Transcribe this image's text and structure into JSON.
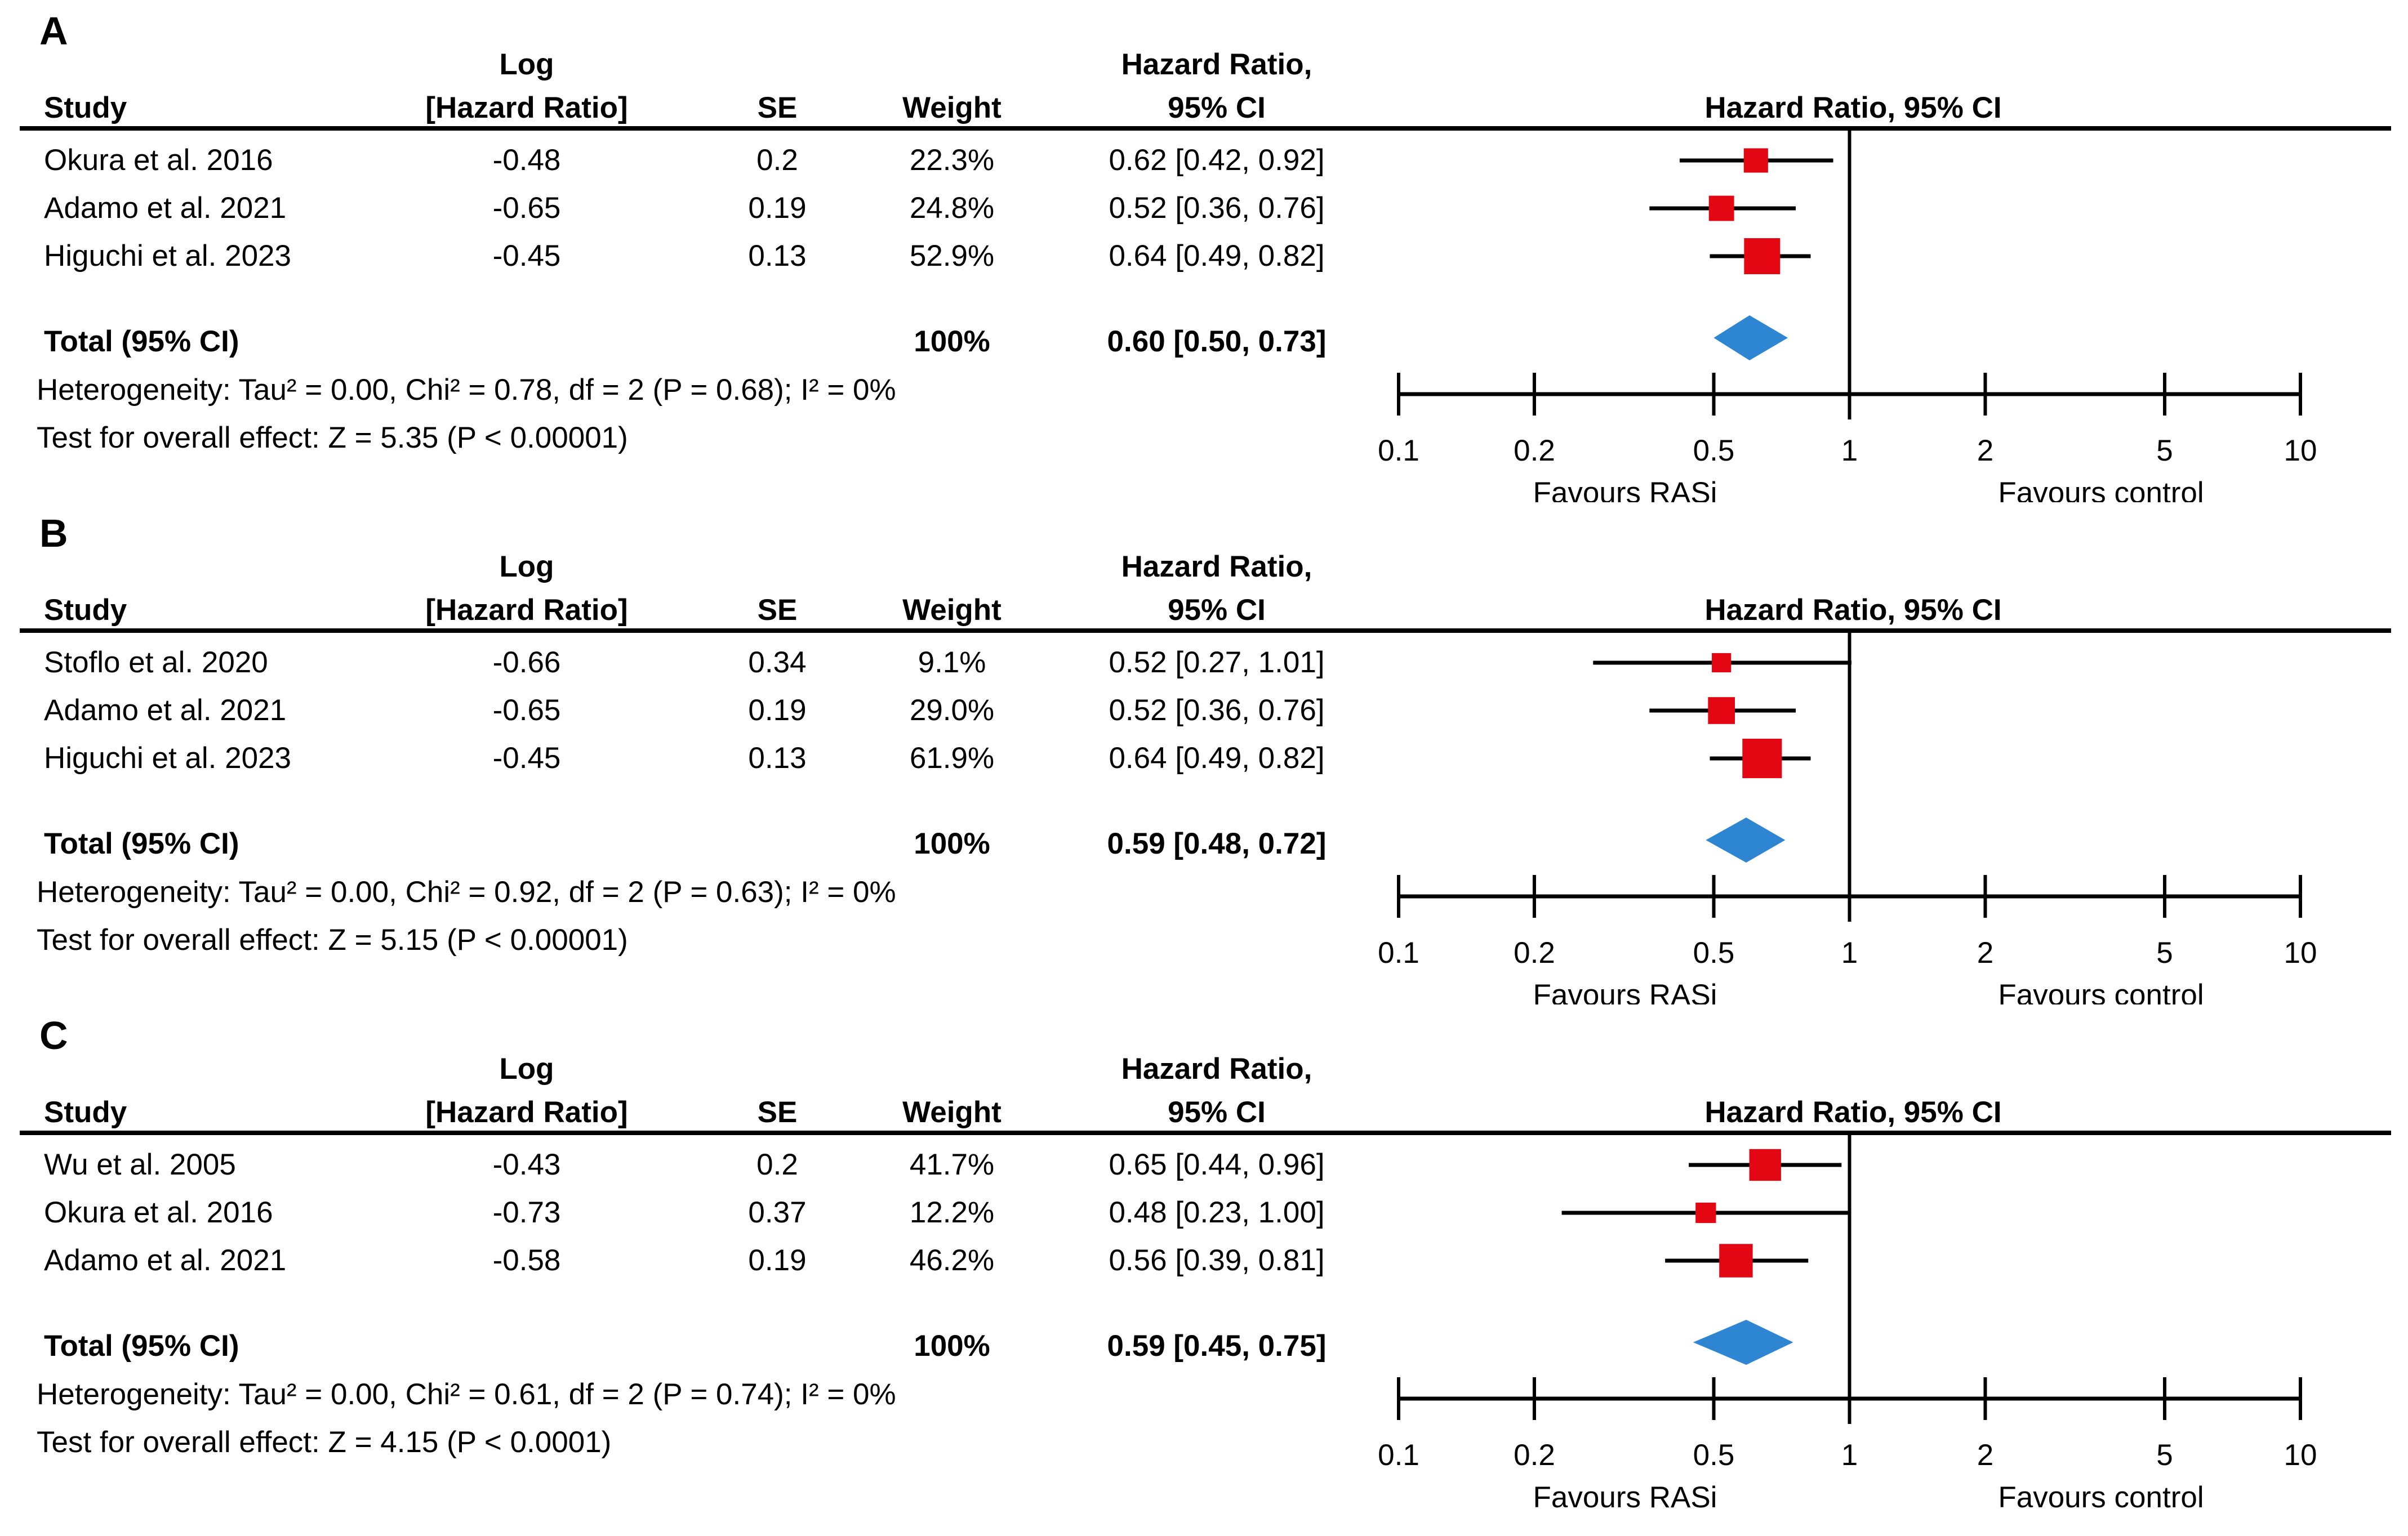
{
  "figure": {
    "columns": {
      "study": "Study",
      "log_hr_line1": "Log",
      "log_hr_line2": "[Hazard Ratio]",
      "se": "SE",
      "weight": "Weight",
      "hr_line1": "Hazard Ratio,",
      "hr_line2": "95% CI",
      "plot_title": "Hazard Ratio, 95% CI"
    },
    "axis": {
      "scale": "log10",
      "min": 0.1,
      "max": 10,
      "ticks": [
        "0.1",
        "0.2",
        "0.5",
        "1",
        "2",
        "5",
        "10"
      ],
      "ref_line": 1
    },
    "favours_left": "Favours RASi",
    "favours_right": "Favours control",
    "colors": {
      "square": "#e30613",
      "diamond": "#2e86d2",
      "line": "#000000"
    }
  },
  "panels": [
    {
      "label": "A",
      "rows": [
        {
          "study": "Okura et al. 2016",
          "log_hr": "-0.48",
          "se": "0.2",
          "weight": "22.3%",
          "hr_ci": "0.62 [0.42, 0.92]"
        },
        {
          "study": "Adamo et al. 2021",
          "log_hr": "-0.65",
          "se": "0.19",
          "weight": "24.8%",
          "hr_ci": "0.52 [0.36, 0.76]"
        },
        {
          "study": "Higuchi et al. 2023",
          "log_hr": "-0.45",
          "se": "0.13",
          "weight": "52.9%",
          "hr_ci": "0.64 [0.49, 0.82]"
        }
      ],
      "total": {
        "label": "Total (95% CI)",
        "weight": "100%",
        "hr_ci": "0.60 [0.50, 0.73]"
      },
      "heterogeneity": "Heterogeneity: Tau² = 0.00, Chi² = 0.78, df = 2 (P = 0.68); I² = 0%",
      "overall_effect": "Test for overall effect: Z = 5.35 (P < 0.00001)"
    },
    {
      "label": "B",
      "rows": [
        {
          "study": "Stoflo et al. 2020",
          "log_hr": "-0.66",
          "se": "0.34",
          "weight": "9.1%",
          "hr_ci": "0.52 [0.27, 1.01]"
        },
        {
          "study": "Adamo et al. 2021",
          "log_hr": "-0.65",
          "se": "0.19",
          "weight": "29.0%",
          "hr_ci": "0.52 [0.36, 0.76]"
        },
        {
          "study": "Higuchi et al. 2023",
          "log_hr": "-0.45",
          "se": "0.13",
          "weight": "61.9%",
          "hr_ci": "0.64 [0.49, 0.82]"
        }
      ],
      "total": {
        "label": "Total (95% CI)",
        "weight": "100%",
        "hr_ci": "0.59 [0.48, 0.72]"
      },
      "heterogeneity": "Heterogeneity: Tau² = 0.00, Chi² = 0.92, df = 2 (P = 0.63); I² = 0%",
      "overall_effect": "Test for overall effect: Z = 5.15 (P < 0.00001)"
    },
    {
      "label": "C",
      "rows": [
        {
          "study": "Wu et al. 2005",
          "log_hr": "-0.43",
          "se": "0.2",
          "weight": "41.7%",
          "hr_ci": "0.65 [0.44, 0.96]"
        },
        {
          "study": "Okura et al. 2016",
          "log_hr": "-0.73",
          "se": "0.37",
          "weight": "12.2%",
          "hr_ci": "0.48 [0.23, 1.00]"
        },
        {
          "study": "Adamo et al. 2021",
          "log_hr": "-0.58",
          "se": "0.19",
          "weight": "46.2%",
          "hr_ci": "0.56 [0.39, 0.81]"
        }
      ],
      "total": {
        "label": "Total (95% CI)",
        "weight": "100%",
        "hr_ci": "0.59 [0.45, 0.75]"
      },
      "heterogeneity": "Heterogeneity: Tau² = 0.00, Chi² = 0.61, df = 2 (P = 0.74); I² = 0%",
      "overall_effect": "Test for overall effect: Z = 4.15 (P < 0.0001)"
    }
  ],
  "chart_data": [
    {
      "type": "scatter",
      "subtype": "forest",
      "panel": "A",
      "title": "Hazard Ratio, 95% CI",
      "x_axis": {
        "scale": "log10",
        "min": 0.1,
        "max": 10,
        "ticks": [
          0.1,
          0.2,
          0.5,
          1,
          2,
          5,
          10
        ],
        "ref_line": 1
      },
      "x_label_left": "Favours RASi",
      "x_label_right": "Favours control",
      "studies": [
        {
          "name": "Okura et al. 2016",
          "hr": 0.62,
          "ci": [
            0.42,
            0.92
          ],
          "weight_pct": 22.3
        },
        {
          "name": "Adamo et al. 2021",
          "hr": 0.52,
          "ci": [
            0.36,
            0.76
          ],
          "weight_pct": 24.8
        },
        {
          "name": "Higuchi et al. 2023",
          "hr": 0.64,
          "ci": [
            0.49,
            0.82
          ],
          "weight_pct": 52.9
        }
      ],
      "total": {
        "label": "Total (95% CI)",
        "hr": 0.6,
        "ci": [
          0.5,
          0.73
        ],
        "weight_pct": 100
      }
    },
    {
      "type": "scatter",
      "subtype": "forest",
      "panel": "B",
      "title": "Hazard Ratio, 95% CI",
      "x_axis": {
        "scale": "log10",
        "min": 0.1,
        "max": 10,
        "ticks": [
          0.1,
          0.2,
          0.5,
          1,
          2,
          5,
          10
        ],
        "ref_line": 1
      },
      "x_label_left": "Favours RASi",
      "x_label_right": "Favours control",
      "studies": [
        {
          "name": "Stoflo et al. 2020",
          "hr": 0.52,
          "ci": [
            0.27,
            1.01
          ],
          "weight_pct": 9.1
        },
        {
          "name": "Adamo et al. 2021",
          "hr": 0.52,
          "ci": [
            0.36,
            0.76
          ],
          "weight_pct": 29.0
        },
        {
          "name": "Higuchi et al. 2023",
          "hr": 0.64,
          "ci": [
            0.49,
            0.82
          ],
          "weight_pct": 61.9
        }
      ],
      "total": {
        "label": "Total (95% CI)",
        "hr": 0.59,
        "ci": [
          0.48,
          0.72
        ],
        "weight_pct": 100
      }
    },
    {
      "type": "scatter",
      "subtype": "forest",
      "panel": "C",
      "title": "Hazard Ratio, 95% CI",
      "x_axis": {
        "scale": "log10",
        "min": 0.1,
        "max": 10,
        "ticks": [
          0.1,
          0.2,
          0.5,
          1,
          2,
          5,
          10
        ],
        "ref_line": 1
      },
      "x_label_left": "Favours RASi",
      "x_label_right": "Favours control",
      "studies": [
        {
          "name": "Wu et al. 2005",
          "hr": 0.65,
          "ci": [
            0.44,
            0.96
          ],
          "weight_pct": 41.7
        },
        {
          "name": "Okura et al. 2016",
          "hr": 0.48,
          "ci": [
            0.23,
            1.0
          ],
          "weight_pct": 12.2
        },
        {
          "name": "Adamo et al. 2021",
          "hr": 0.56,
          "ci": [
            0.39,
            0.81
          ],
          "weight_pct": 46.2
        }
      ],
      "total": {
        "label": "Total (95% CI)",
        "hr": 0.59,
        "ci": [
          0.45,
          0.75
        ],
        "weight_pct": 100
      }
    }
  ]
}
